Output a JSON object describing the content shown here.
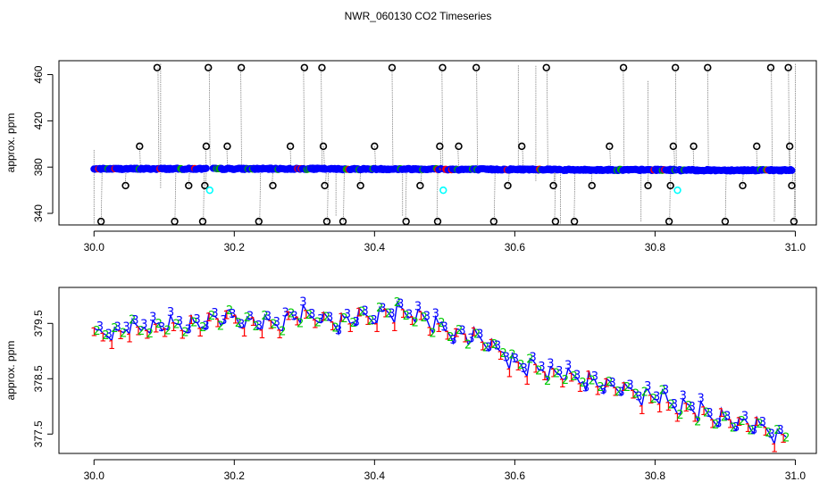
{
  "title": "NWR_060130  CO2 Timeseries",
  "chart_data": [
    {
      "type": "scatter",
      "ylabel": "approx. ppm",
      "xlim": [
        29.95,
        31.03
      ],
      "ylim": [
        330,
        472
      ],
      "x_ticks": [
        "30.0",
        "30.2",
        "30.4",
        "30.6",
        "30.8",
        "31.0"
      ],
      "y_ticks": [
        "340",
        "380",
        "420",
        "460"
      ],
      "colors": {
        "main": "#0000ff",
        "flag": "#000000",
        "alt": "#00ffff",
        "trace": "#7f7f7f",
        "aux": "#ff0000"
      },
      "main_series": {
        "segments": [
          {
            "x_start": 30.0,
            "x_end": 30.16,
            "y": 378.5
          },
          {
            "x_start": 30.17,
            "x_end": 30.33,
            "y": 378.5
          },
          {
            "x_start": 30.335,
            "x_end": 30.495,
            "y": 378.3
          },
          {
            "x_start": 30.5,
            "x_end": 30.665,
            "y": 378.0
          },
          {
            "x_start": 30.67,
            "x_end": 30.83,
            "y": 377.6
          },
          {
            "x_start": 30.835,
            "x_end": 30.995,
            "y": 377.3
          }
        ]
      },
      "flagged_points": [
        [
          30.01,
          333
        ],
        [
          30.045,
          364
        ],
        [
          30.065,
          398
        ],
        [
          30.09,
          466
        ],
        [
          30.115,
          333
        ],
        [
          30.135,
          364
        ],
        [
          30.155,
          333
        ],
        [
          30.158,
          364
        ],
        [
          30.16,
          398
        ],
        [
          30.163,
          466
        ],
        [
          30.19,
          398
        ],
        [
          30.21,
          466
        ],
        [
          30.235,
          333
        ],
        [
          30.255,
          364
        ],
        [
          30.28,
          398
        ],
        [
          30.3,
          466
        ],
        [
          30.325,
          466
        ],
        [
          30.327,
          398
        ],
        [
          30.329,
          364
        ],
        [
          30.332,
          333
        ],
        [
          30.355,
          333
        ],
        [
          30.38,
          364
        ],
        [
          30.4,
          398
        ],
        [
          30.425,
          466
        ],
        [
          30.445,
          333
        ],
        [
          30.465,
          364
        ],
        [
          30.49,
          333
        ],
        [
          30.493,
          398
        ],
        [
          30.497,
          466
        ],
        [
          30.52,
          398
        ],
        [
          30.545,
          466
        ],
        [
          30.57,
          333
        ],
        [
          30.59,
          364
        ],
        [
          30.61,
          398
        ],
        [
          30.645,
          466
        ],
        [
          30.655,
          364
        ],
        [
          30.658,
          333
        ],
        [
          30.685,
          333
        ],
        [
          30.71,
          364
        ],
        [
          30.735,
          398
        ],
        [
          30.755,
          466
        ],
        [
          30.79,
          364
        ],
        [
          30.82,
          333
        ],
        [
          30.822,
          364
        ],
        [
          30.826,
          398
        ],
        [
          30.829,
          466
        ],
        [
          30.855,
          398
        ],
        [
          30.875,
          466
        ],
        [
          30.9,
          333
        ],
        [
          30.925,
          364
        ],
        [
          30.945,
          398
        ],
        [
          30.965,
          466
        ],
        [
          30.99,
          466
        ],
        [
          30.992,
          398
        ],
        [
          30.995,
          364
        ],
        [
          30.998,
          333
        ]
      ],
      "alt_points": [
        [
          30.165,
          360
        ],
        [
          30.498,
          360
        ],
        [
          30.832,
          360
        ]
      ]
    },
    {
      "type": "scatter",
      "ylabel": "approx. ppm",
      "xlim": [
        29.95,
        31.03
      ],
      "ylim": [
        377.15,
        380.15
      ],
      "x_ticks": [
        "30.0",
        "30.2",
        "30.4",
        "30.6",
        "30.8",
        "31.0"
      ],
      "y_ticks": [
        "377.5",
        "378.5",
        "379.5"
      ],
      "marker_labels": [
        "1",
        "2",
        "3"
      ],
      "colors": {
        "1": "#ff0000",
        "2": "#00cc00",
        "3": "#0000ff",
        "line": "#0000ff"
      },
      "trend": [
        [
          30.0,
          379.25
        ],
        [
          30.05,
          379.4
        ],
        [
          30.1,
          379.45
        ],
        [
          30.15,
          379.5
        ],
        [
          30.2,
          379.6
        ],
        [
          30.25,
          379.45
        ],
        [
          30.3,
          379.7
        ],
        [
          30.35,
          379.5
        ],
        [
          30.4,
          379.65
        ],
        [
          30.45,
          379.7
        ],
        [
          30.5,
          379.4
        ],
        [
          30.55,
          379.2
        ],
        [
          30.58,
          379.0
        ],
        [
          30.6,
          378.75
        ],
        [
          30.65,
          378.65
        ],
        [
          30.7,
          378.5
        ],
        [
          30.75,
          378.3
        ],
        [
          30.8,
          378.15
        ],
        [
          30.85,
          377.95
        ],
        [
          30.9,
          377.8
        ],
        [
          30.95,
          377.6
        ],
        [
          30.99,
          377.45
        ]
      ]
    }
  ]
}
